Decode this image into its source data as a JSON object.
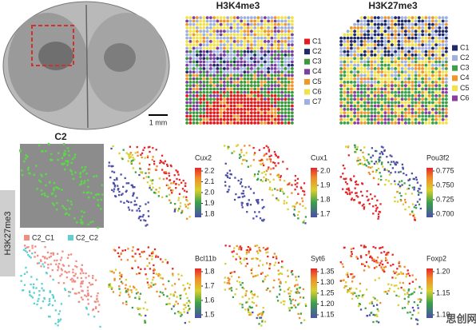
{
  "scale_bar": "1 mm",
  "h3k4me3": {
    "title": "H3K4me3",
    "clusters": [
      {
        "name": "C1",
        "color": "#e41a1c"
      },
      {
        "name": "C2",
        "color": "#1f2a6b"
      },
      {
        "name": "C3",
        "color": "#3a9a3a"
      },
      {
        "name": "C4",
        "color": "#7b3fa0"
      },
      {
        "name": "C5",
        "color": "#f0962a"
      },
      {
        "name": "C6",
        "color": "#f2e24a"
      },
      {
        "name": "C7",
        "color": "#9fb0e0"
      }
    ]
  },
  "h3k27me3": {
    "title": "H3K27me3",
    "clusters": [
      {
        "name": "C1",
        "color": "#1f2a6b"
      },
      {
        "name": "C2",
        "color": "#9fb0e0"
      },
      {
        "name": "C3",
        "color": "#3aa04a"
      },
      {
        "name": "C4",
        "color": "#f0962a"
      },
      {
        "name": "C5",
        "color": "#f2e24a"
      },
      {
        "name": "C6",
        "color": "#8a3fa0"
      }
    ]
  },
  "c2": {
    "title": "C2",
    "side_label": "H3K27me3",
    "legend": [
      {
        "name": "C2_C1",
        "color": "#f08c84"
      },
      {
        "name": "C2_C2",
        "color": "#5fcfcf"
      }
    ]
  },
  "genes": [
    {
      "name": "Cux2",
      "ticks": [
        "2.2",
        "2.1",
        "2.0",
        "1.9",
        "1.8"
      ]
    },
    {
      "name": "Cux1",
      "ticks": [
        "2.0",
        "1.9",
        "1.8",
        "1.7"
      ]
    },
    {
      "name": "Pou3f2",
      "ticks": [
        "0.775",
        "0.750",
        "0.725",
        "0.700"
      ]
    },
    {
      "name": "Bcl11b",
      "ticks": [
        "1.8",
        "1.7",
        "1.6",
        "1.5"
      ]
    },
    {
      "name": "Syt6",
      "ticks": [
        "1.35",
        "1.30",
        "1.25",
        "1.20",
        "1.15"
      ]
    },
    {
      "name": "Foxp2",
      "ticks": [
        "1.20",
        "1.15",
        "1.10"
      ]
    }
  ],
  "watermark": "思创网"
}
